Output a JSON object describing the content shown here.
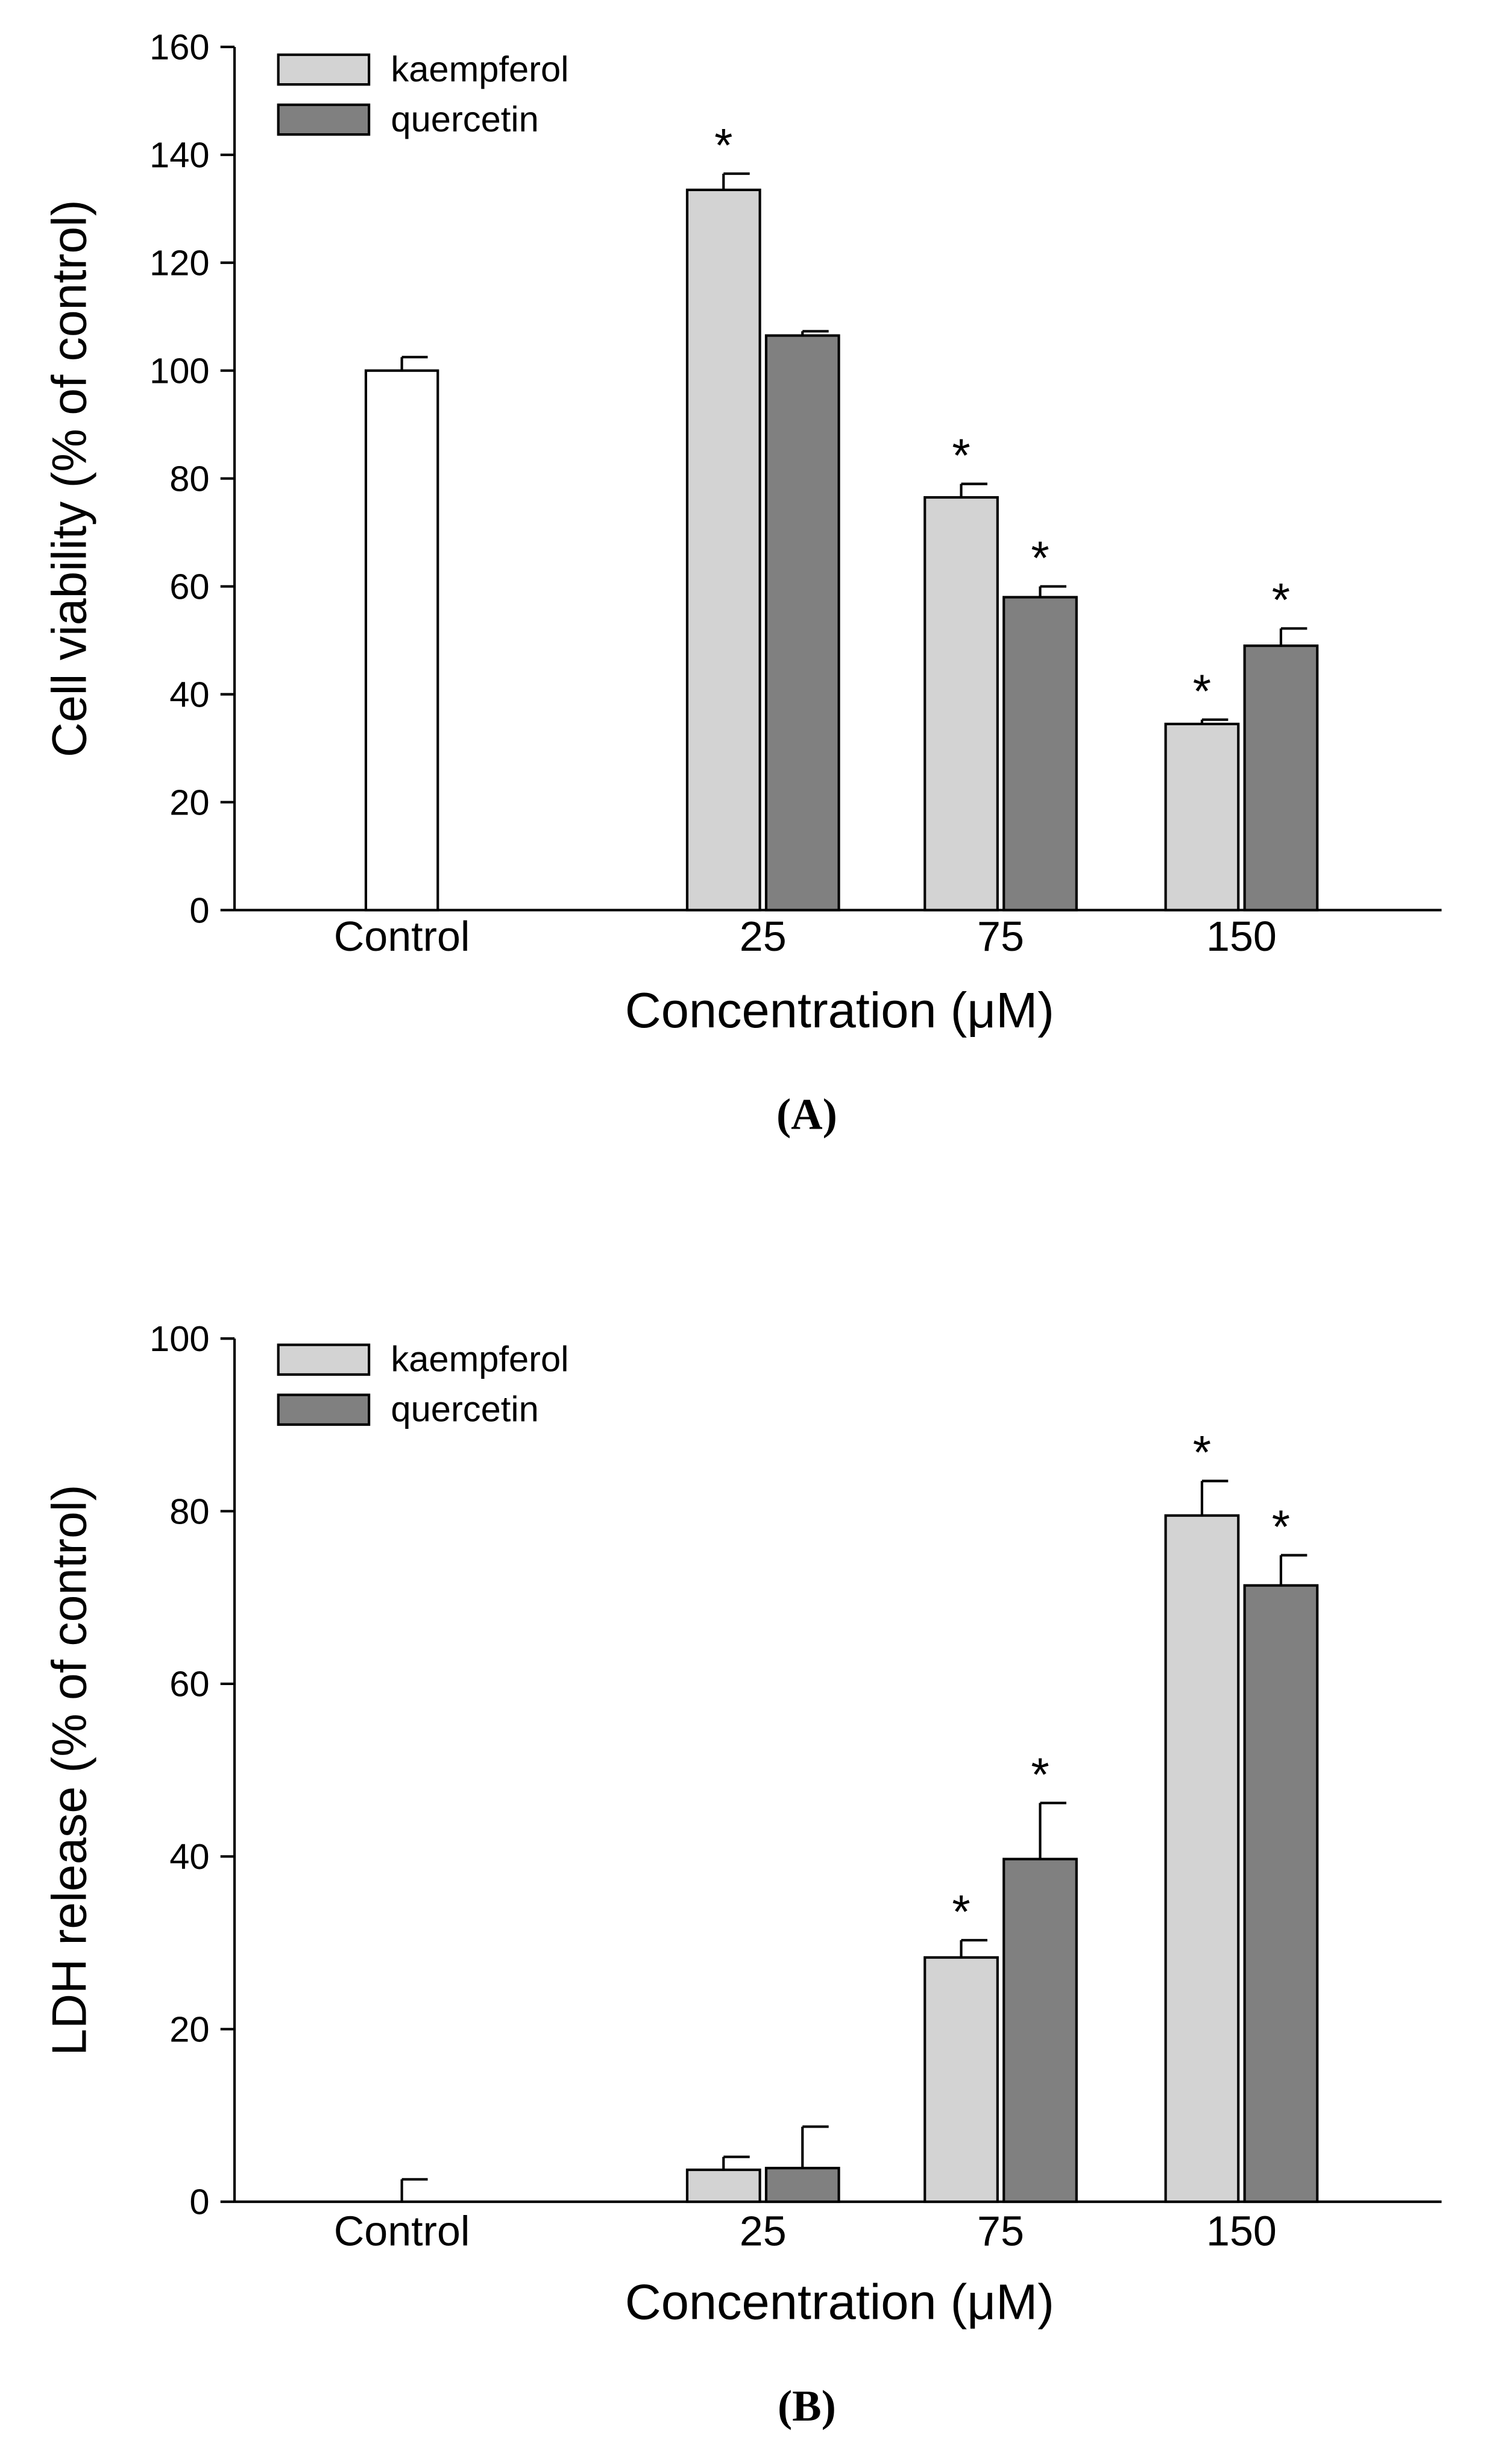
{
  "chart_data": [
    {
      "type": "bar",
      "panel_label": "(A)",
      "ylabel": "Cell viability (% of control)",
      "xlabel": "Concentration (μM)",
      "ylim": [
        0,
        160
      ],
      "yticks": [
        0,
        20,
        40,
        60,
        80,
        100,
        120,
        140,
        160
      ],
      "categories": [
        "Control",
        "25",
        "75",
        "150"
      ],
      "legend_position": "top-left",
      "series": [
        {
          "name": "control",
          "color": "#ffffff",
          "values": [
            100,
            null,
            null,
            null
          ],
          "errors": [
            2.5,
            null,
            null,
            null
          ],
          "significant": [
            false,
            false,
            false,
            false
          ]
        },
        {
          "name": "kaempferol",
          "color": "#d3d3d3",
          "values": [
            null,
            133.5,
            76.5,
            34.5
          ],
          "errors": [
            null,
            3,
            2.5,
            0.8
          ],
          "significant": [
            false,
            true,
            true,
            true
          ]
        },
        {
          "name": "quercetin",
          "color": "#808080",
          "values": [
            null,
            106.5,
            58,
            49
          ],
          "errors": [
            null,
            0.8,
            2,
            3.2
          ],
          "significant": [
            false,
            false,
            true,
            true
          ]
        }
      ],
      "significance_marker": "*"
    },
    {
      "type": "bar",
      "panel_label": "(B)",
      "ylabel": "LDH release (% of control)",
      "xlabel": "Concentration (μM)",
      "ylim": [
        0,
        100
      ],
      "yticks": [
        0,
        20,
        40,
        60,
        80,
        100
      ],
      "categories": [
        "Control",
        "25",
        "75",
        "150"
      ],
      "legend_position": "top-left",
      "series": [
        {
          "name": "control",
          "color": "#ffffff",
          "values": [
            0,
            null,
            null,
            null
          ],
          "errors": [
            2.6,
            null,
            null,
            null
          ],
          "significant": [
            false,
            false,
            false,
            false
          ]
        },
        {
          "name": "kaempferol",
          "color": "#d3d3d3",
          "values": [
            null,
            3.7,
            28.3,
            79.5
          ],
          "errors": [
            null,
            1.5,
            2,
            4
          ],
          "significant": [
            false,
            false,
            true,
            true
          ]
        },
        {
          "name": "quercetin",
          "color": "#808080",
          "values": [
            null,
            3.9,
            39.7,
            71.4
          ],
          "errors": [
            null,
            4.8,
            6.5,
            3.5
          ],
          "significant": [
            false,
            false,
            true,
            true
          ]
        }
      ],
      "significance_marker": "*"
    }
  ]
}
